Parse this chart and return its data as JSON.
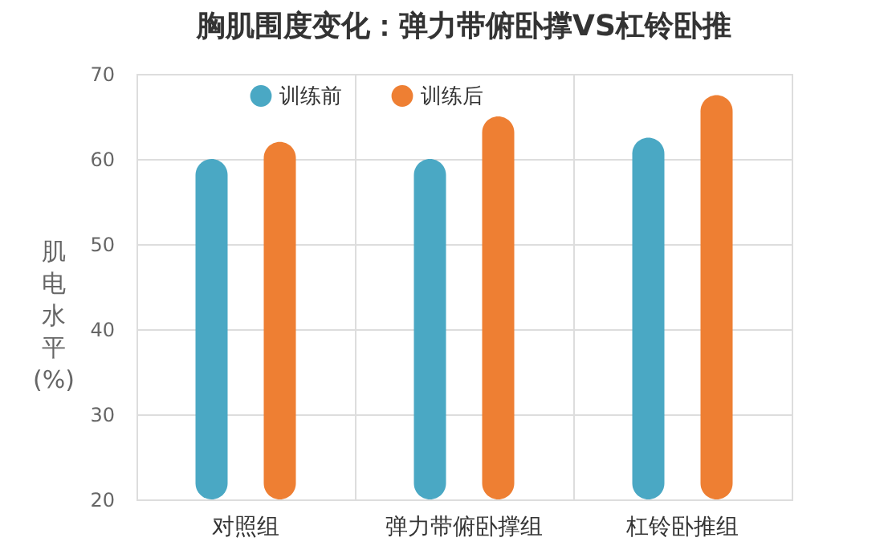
{
  "chart_data": {
    "type": "bar",
    "title": "胸肌围度变化：弹力带俯卧撑VS杠铃卧推",
    "ylabel": "肌电水平(%)",
    "categories": [
      "对照组",
      "弹力带俯卧撑组",
      "杠铃卧推组"
    ],
    "series": [
      {
        "name": "训练前",
        "color": "#4aa8c4",
        "values": [
          60,
          60,
          62.5
        ]
      },
      {
        "name": "训练后",
        "color": "#ee7f33",
        "values": [
          62,
          65,
          67.5
        ]
      }
    ],
    "ylim": [
      20,
      70
    ],
    "yticks": [
      20,
      30,
      40,
      50,
      60,
      70
    ],
    "grid": true,
    "legend": "top"
  }
}
